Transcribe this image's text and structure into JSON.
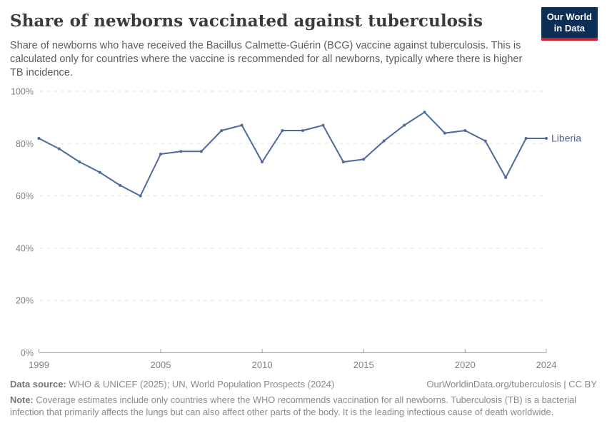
{
  "header": {
    "title": "Share of newborns vaccinated against tuberculosis",
    "subtitle": "Share of newborns who have received the Bacillus Calmette-Guérin (BCG) vaccine against tuberculosis. This is calculated only for countries where the vaccine is recommended for all newborns, typically where there is higher TB incidence.",
    "logo": {
      "line1": "Our World",
      "line2": "in Data",
      "bg_color": "#0d2e55",
      "bar_color": "#c2252e",
      "text_color": "#ffffff"
    }
  },
  "chart_data": {
    "type": "line",
    "title": "Share of newborns vaccinated against tuberculosis",
    "xlabel": "",
    "ylabel": "",
    "xlim": [
      1999,
      2024
    ],
    "ylim": [
      0,
      100
    ],
    "grid": "horizontal-dashed",
    "legend_position": "end-of-line",
    "x": [
      1999,
      2000,
      2001,
      2002,
      2003,
      2004,
      2005,
      2006,
      2007,
      2008,
      2009,
      2010,
      2011,
      2012,
      2013,
      2014,
      2015,
      2016,
      2017,
      2018,
      2019,
      2020,
      2021,
      2022,
      2023,
      2024
    ],
    "series": [
      {
        "name": "Liberia",
        "color": "#4c6a9c",
        "values": [
          82,
          78,
          73,
          69,
          64,
          60,
          76,
          77,
          77,
          85,
          87,
          73,
          85,
          85,
          87,
          73,
          74,
          81,
          87,
          92,
          84,
          85,
          81,
          67,
          82,
          82
        ]
      }
    ],
    "x_ticks": [
      1999,
      2005,
      2010,
      2015,
      2020,
      2024
    ],
    "y_ticks": [
      0,
      20,
      40,
      60,
      80,
      100
    ],
    "y_tick_suffix": "%",
    "axis_color": "#a6a6a6",
    "gridline_color": "#e2e2e2",
    "tick_label_color": "#818181"
  },
  "footer": {
    "datasource_label": "Data source:",
    "datasource_text": " WHO & UNICEF (2025); UN, World Population Prospects (2024)",
    "link_text": "OurWorldinData.org/tuberculosis | CC BY",
    "note_label": "Note:",
    "note_text": " Coverage estimates include only countries where the WHO recommends vaccination for all newborns. Tuberculosis (TB) is a bacterial infection that primarily affects the lungs but can also affect other parts of the body. It is the leading infectious cause of death worldwide."
  }
}
